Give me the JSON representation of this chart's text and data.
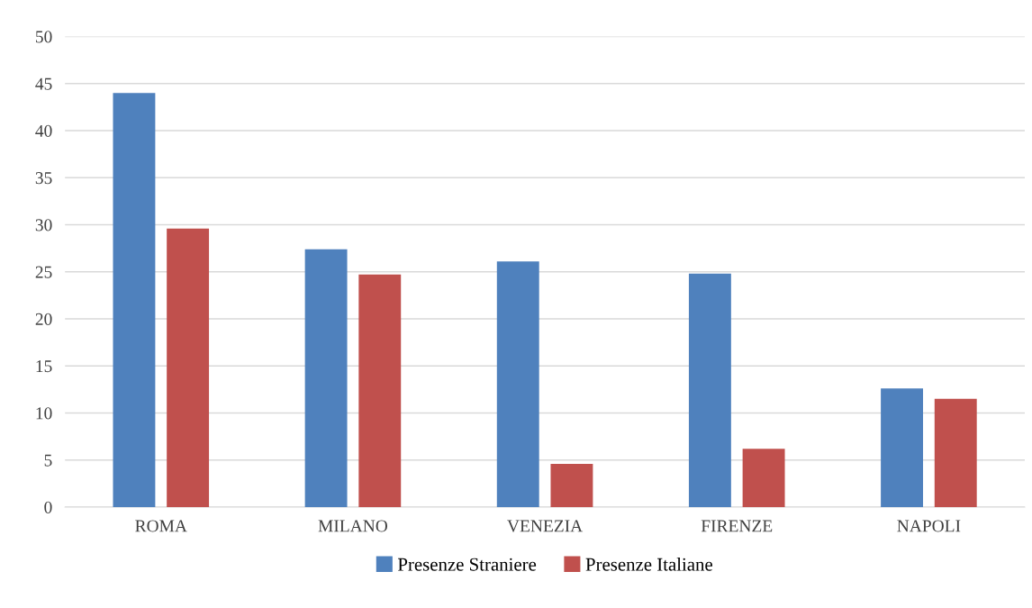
{
  "chart_data": {
    "type": "bar",
    "categories": [
      "ROMA",
      "MILANO",
      "VENEZIA",
      "FIRENZE",
      "NAPOLI"
    ],
    "series": [
      {
        "name": "Presenze Straniere",
        "color": "#4f81bd",
        "values": [
          44,
          27.4,
          26.1,
          24.8,
          12.6
        ]
      },
      {
        "name": "Presenze Italiane",
        "color": "#c0504d",
        "values": [
          29.6,
          24.7,
          4.6,
          6.2,
          11.5
        ]
      }
    ],
    "ylim": [
      0,
      50
    ],
    "yticks": [
      0,
      5,
      10,
      15,
      20,
      25,
      30,
      35,
      40,
      45,
      50
    ],
    "grid": "y",
    "legend": "bottom"
  }
}
